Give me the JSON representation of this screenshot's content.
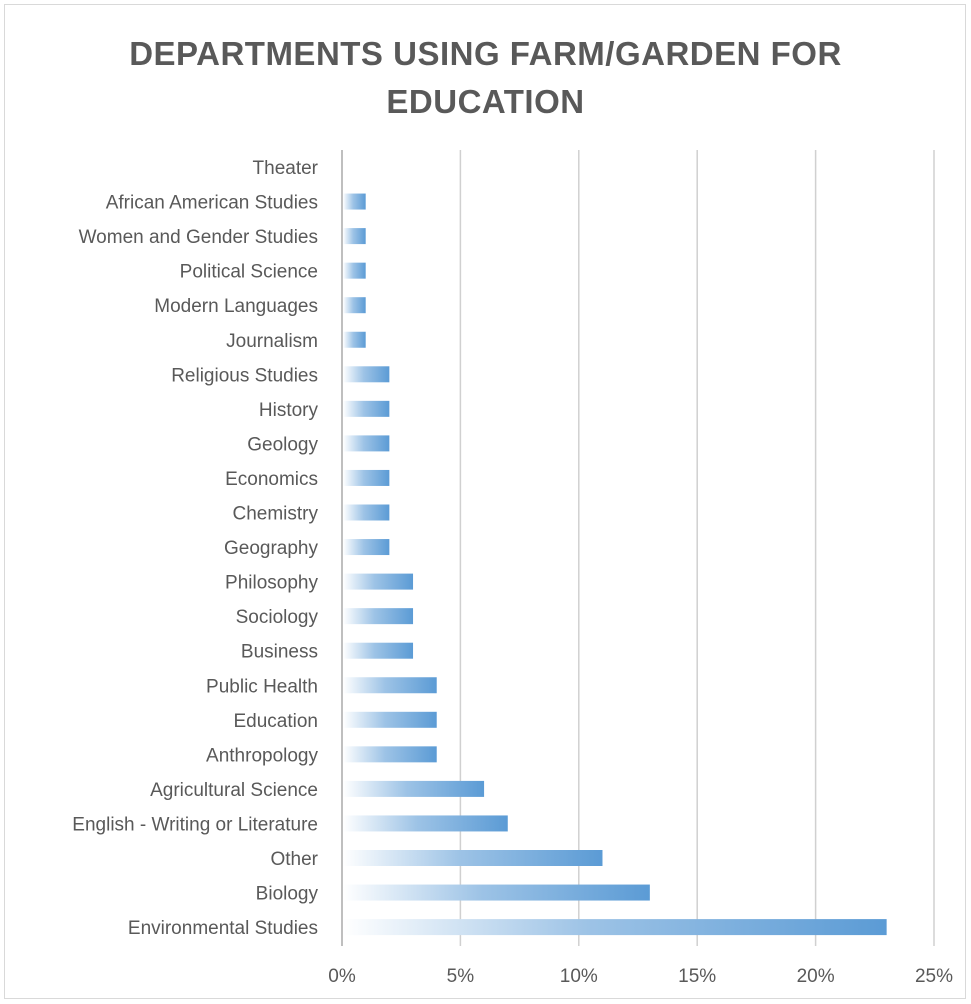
{
  "chart_data": {
    "type": "bar",
    "orientation": "horizontal",
    "title_lines": [
      "DEPARTMENTS USING FARM/GARDEN FOR",
      "EDUCATION"
    ],
    "categories": [
      "Theater",
      "African American Studies",
      "Women and Gender Studies",
      "Political Science",
      "Modern Languages",
      "Journalism",
      "Religious Studies",
      "History",
      "Geology",
      "Economics",
      "Chemistry",
      "Geography",
      "Philosophy",
      "Sociology",
      "Business",
      "Public Health",
      "Education",
      "Anthropology",
      "Agricultural Science",
      "English - Writing or Literature",
      "Other",
      "Biology",
      "Environmental Studies"
    ],
    "values": [
      0,
      1,
      1,
      1,
      1,
      1,
      2,
      2,
      2,
      2,
      2,
      2,
      3,
      3,
      3,
      4,
      4,
      4,
      6,
      7,
      11,
      13,
      23
    ],
    "value_unit": "%",
    "xlim": [
      0,
      25
    ],
    "x_ticks": [
      "0%",
      "5%",
      "10%",
      "15%",
      "20%",
      "25%"
    ],
    "grid": "vertical",
    "legend": "none",
    "bar_color": "#5b9bd5"
  }
}
